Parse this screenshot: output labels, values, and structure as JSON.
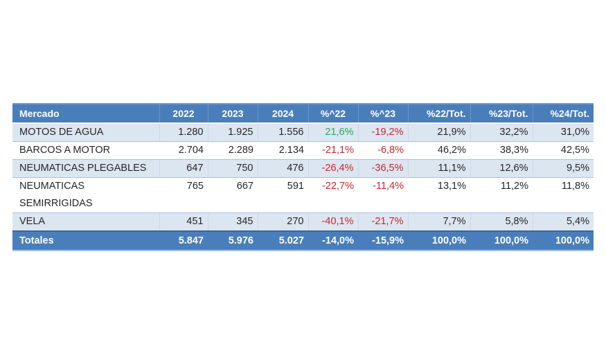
{
  "table": {
    "columns": [
      {
        "id": "mercado",
        "label": "Mercado",
        "header_align": "left",
        "data_align": "left"
      },
      {
        "id": "y2022",
        "label": "2022",
        "header_align": "center",
        "data_align": "right"
      },
      {
        "id": "y2023",
        "label": "2023",
        "header_align": "center",
        "data_align": "right"
      },
      {
        "id": "y2024",
        "label": "2024",
        "header_align": "center",
        "data_align": "right"
      },
      {
        "id": "var22",
        "label": "%^22",
        "header_align": "center",
        "data_align": "right"
      },
      {
        "id": "var23",
        "label": "%^23",
        "header_align": "center",
        "data_align": "right"
      },
      {
        "id": "tot22",
        "label": "%22/Tot.",
        "header_align": "right",
        "data_align": "right"
      },
      {
        "id": "tot23",
        "label": "%23/Tot.",
        "header_align": "right",
        "data_align": "right"
      },
      {
        "id": "tot24",
        "label": "%24/Tot.",
        "header_align": "right",
        "data_align": "right"
      }
    ],
    "rows": [
      {
        "mercado": "MOTOS DE AGUA",
        "y2022": "1.280",
        "y2023": "1.925",
        "y2024": "1.556",
        "var22": "21,6%",
        "var22_trend": "positive",
        "var23": "-19,2%",
        "var23_trend": "negative",
        "tot22": "21,9%",
        "tot23": "32,2%",
        "tot24": "31,0%"
      },
      {
        "mercado": "BARCOS A MOTOR",
        "y2022": "2.704",
        "y2023": "2.289",
        "y2024": "2.134",
        "var22": "-21,1%",
        "var22_trend": "negative",
        "var23": "-6,8%",
        "var23_trend": "negative",
        "tot22": "46,2%",
        "tot23": "38,3%",
        "tot24": "42,5%"
      },
      {
        "mercado": "NEUMATICAS PLEGABLES",
        "y2022": "647",
        "y2023": "750",
        "y2024": "476",
        "var22": "-26,4%",
        "var22_trend": "negative",
        "var23": "-36,5%",
        "var23_trend": "negative",
        "tot22": "11,1%",
        "tot23": "12,6%",
        "tot24": "9,5%"
      },
      {
        "mercado": "NEUMATICAS\nSEMIRRIGIDAS",
        "y2022": "765",
        "y2023": "667",
        "y2024": "591",
        "var22": "-22,7%",
        "var22_trend": "negative",
        "var23": "-11,4%",
        "var23_trend": "negative",
        "tot22": "13,1%",
        "tot23": "11,2%",
        "tot24": "11,8%"
      },
      {
        "mercado": "VELA",
        "y2022": "451",
        "y2023": "345",
        "y2024": "270",
        "var22": "-40,1%",
        "var22_trend": "negative",
        "var23": "-21,7%",
        "var23_trend": "negative",
        "tot22": "7,7%",
        "tot23": "5,8%",
        "tot24": "5,4%"
      }
    ],
    "totals": {
      "mercado": "Totales",
      "y2022": "5.847",
      "y2023": "5.976",
      "y2024": "5.027",
      "var22": "-14,0%",
      "var23": "-15,9%",
      "tot22": "100,0%",
      "tot23": "100,0%",
      "tot24": "100,0%"
    }
  },
  "colors": {
    "header_bg": "#4A7EBB",
    "header_top_highlight": "#6E97C9",
    "band_bg": "#DCE6F1",
    "band_border": "#AAC1DE",
    "total_bg": "#4A7EBB",
    "total_top_border": "#3A669C",
    "table_bottom_border": "#A7C0E4",
    "text": "#262626",
    "positive": "#27A866",
    "negative": "#C4282D"
  },
  "chart_data": {
    "type": "table",
    "title": "",
    "columns": [
      "Mercado",
      "2022",
      "2023",
      "2024",
      "%^22",
      "%^23",
      "%22/Tot.",
      "%23/Tot.",
      "%24/Tot."
    ],
    "rows": [
      [
        "MOTOS DE AGUA",
        1280,
        1925,
        1556,
        21.6,
        -19.2,
        21.9,
        32.2,
        31.0
      ],
      [
        "BARCOS A MOTOR",
        2704,
        2289,
        2134,
        -21.1,
        -6.8,
        46.2,
        38.3,
        42.5
      ],
      [
        "NEUMATICAS PLEGABLES",
        647,
        750,
        476,
        -26.4,
        -36.5,
        11.1,
        12.6,
        9.5
      ],
      [
        "NEUMATICAS SEMIRRIGIDAS",
        765,
        667,
        591,
        -22.7,
        -11.4,
        13.1,
        11.2,
        11.8
      ],
      [
        "VELA",
        451,
        345,
        270,
        -40.1,
        -21.7,
        7.7,
        5.8,
        5.4
      ]
    ],
    "totals": [
      "Totales",
      5847,
      5976,
      5027,
      -14.0,
      -15.9,
      100.0,
      100.0,
      100.0
    ],
    "notes": "Variation %^ columns colored green when positive, red when negative; decimal comma / thousands dot (Spanish locale)"
  }
}
